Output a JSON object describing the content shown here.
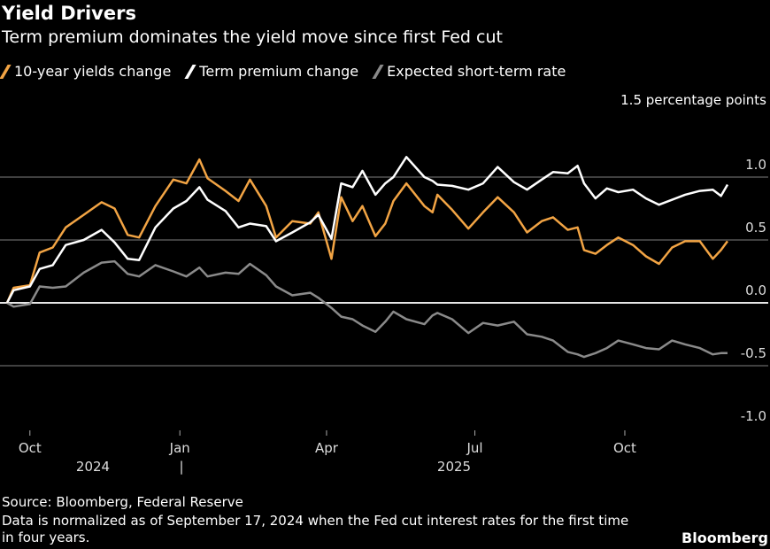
{
  "header": {
    "title": "Yield Drivers",
    "subtitle": "Term premium dominates the yield move since first Fed cut"
  },
  "footer": {
    "source": "Source: Bloomberg, Federal Reserve",
    "note_line1": "Data is normalized as of September 17, 2024 when the Fed cut interest rates for the first time",
    "note_line2": "in four years.",
    "brand": "Bloomberg"
  },
  "chart_data": {
    "type": "line",
    "title": "Yield Drivers",
    "subtitle": "Term premium dominates the yield move since first Fed cut",
    "ylabel": "1.5 percentage points",
    "ylim": [
      -1.0,
      1.5
    ],
    "yticks": [
      "1.0",
      "0.5",
      "0.0",
      "-0.5",
      "-1.0"
    ],
    "xticks": [
      "Oct",
      "Jan",
      "Apr",
      "Jul",
      "Oct"
    ],
    "xtick_dates": [
      "2024-10-01",
      "2025-01-01",
      "2025-04-01",
      "2025-07-01",
      "2025-10-01"
    ],
    "years": [
      "2024",
      "2025"
    ],
    "year_separator": "|",
    "grid": true,
    "legend": "top-left",
    "x": [
      "2024-09-17",
      "2024-09-21",
      "2024-10-01",
      "2024-10-07",
      "2024-10-15",
      "2024-10-23",
      "2024-11-03",
      "2024-11-14",
      "2024-11-22",
      "2024-11-30",
      "2024-12-07",
      "2024-12-17",
      "2024-12-28",
      "2025-01-05",
      "2025-01-13",
      "2025-01-18",
      "2025-01-29",
      "2025-02-06",
      "2025-02-13",
      "2025-02-23",
      "2025-03-01",
      "2025-03-11",
      "2025-03-22",
      "2025-03-27",
      "2025-04-04",
      "2025-04-10",
      "2025-04-17",
      "2025-04-23",
      "2025-05-01",
      "2025-05-07",
      "2025-05-12",
      "2025-05-20",
      "2025-05-31",
      "2025-06-05",
      "2025-06-08",
      "2025-06-17",
      "2025-06-27",
      "2025-07-06",
      "2025-07-15",
      "2025-07-25",
      "2025-08-02",
      "2025-08-11",
      "2025-08-18",
      "2025-08-27",
      "2025-09-02",
      "2025-09-06",
      "2025-09-13",
      "2025-09-20",
      "2025-09-27",
      "2025-10-06",
      "2025-10-14",
      "2025-10-22",
      "2025-10-30",
      "2025-11-07",
      "2025-11-16",
      "2025-11-24",
      "2025-11-29",
      "2025-12-03"
    ],
    "series": [
      {
        "name": "10-year yields change",
        "color": "#f2a444",
        "values": [
          0,
          0.12,
          0.14,
          0.4,
          0.44,
          0.6,
          0.7,
          0.8,
          0.75,
          0.54,
          0.52,
          0.77,
          0.98,
          0.95,
          1.14,
          0.99,
          0.89,
          0.81,
          0.98,
          0.77,
          0.52,
          0.65,
          0.63,
          0.72,
          0.35,
          0.84,
          0.65,
          0.77,
          0.53,
          0.63,
          0.81,
          0.95,
          0.77,
          0.72,
          0.86,
          0.74,
          0.59,
          0.72,
          0.84,
          0.72,
          0.56,
          0.65,
          0.68,
          0.58,
          0.6,
          0.42,
          0.39,
          0.46,
          0.52,
          0.46,
          0.37,
          0.31,
          0.44,
          0.49,
          0.49,
          0.35,
          0.42,
          0.49
        ]
      },
      {
        "name": "Term premium change",
        "color": "#ffffff",
        "values": [
          0,
          0.1,
          0.13,
          0.27,
          0.3,
          0.46,
          0.5,
          0.58,
          0.48,
          0.35,
          0.34,
          0.6,
          0.75,
          0.81,
          0.92,
          0.82,
          0.73,
          0.6,
          0.63,
          0.61,
          0.49,
          0.56,
          0.64,
          0.7,
          0.51,
          0.95,
          0.92,
          1.05,
          0.86,
          0.95,
          1.0,
          1.16,
          1.0,
          0.97,
          0.94,
          0.93,
          0.9,
          0.95,
          1.08,
          0.96,
          0.9,
          0.98,
          1.04,
          1.03,
          1.09,
          0.95,
          0.83,
          0.91,
          0.88,
          0.9,
          0.83,
          0.78,
          0.82,
          0.86,
          0.89,
          0.9,
          0.85,
          0.94
        ]
      },
      {
        "name": "Expected short-term rate",
        "color": "#8a8a8a",
        "values": [
          0,
          -0.03,
          -0.01,
          0.13,
          0.12,
          0.13,
          0.24,
          0.32,
          0.33,
          0.23,
          0.21,
          0.3,
          0.25,
          0.21,
          0.28,
          0.21,
          0.24,
          0.23,
          0.31,
          0.22,
          0.13,
          0.06,
          0.08,
          0.04,
          -0.04,
          -0.11,
          -0.13,
          -0.18,
          -0.23,
          -0.15,
          -0.07,
          -0.13,
          -0.17,
          -0.1,
          -0.08,
          -0.13,
          -0.24,
          -0.16,
          -0.18,
          -0.15,
          -0.25,
          -0.27,
          -0.3,
          -0.39,
          -0.41,
          -0.43,
          -0.4,
          -0.36,
          -0.3,
          -0.33,
          -0.36,
          -0.37,
          -0.3,
          -0.33,
          -0.36,
          -0.41,
          -0.4,
          -0.4
        ]
      }
    ]
  }
}
